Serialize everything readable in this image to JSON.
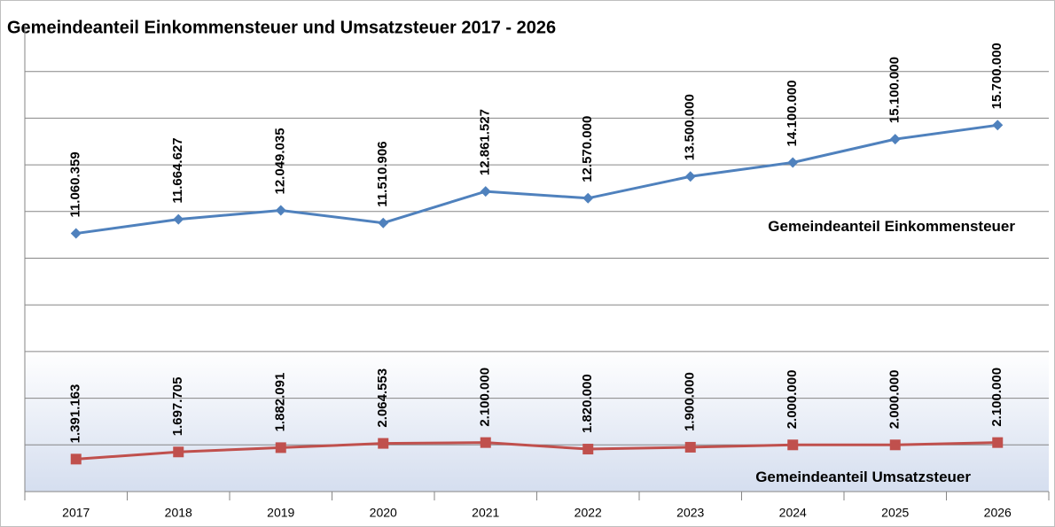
{
  "chart_data": {
    "type": "line",
    "title": "Gemeindeanteil Einkommensteuer und Umsatzsteuer 2017 - 2026",
    "categories": [
      "2017",
      "2018",
      "2019",
      "2020",
      "2021",
      "2022",
      "2023",
      "2024",
      "2025",
      "2026"
    ],
    "series": [
      {
        "name": "Gemeindeanteil Einkommensteuer",
        "color": "#4f81bd",
        "marker": "diamond",
        "values": [
          11060359,
          11664627,
          12049035,
          11510906,
          12861527,
          12570000,
          13500000,
          14100000,
          15100000,
          15700000
        ],
        "value_labels": [
          "11.060.359",
          "11.664.627",
          "12.049.035",
          "11.510.906",
          "12.861.527",
          "12.570.000",
          "13.500.000",
          "14.100.000",
          "15.100.000",
          "15.700.000"
        ]
      },
      {
        "name": "Gemeindeanteil Umsatzsteuer",
        "color": "#c0504d",
        "marker": "square",
        "values": [
          1391163,
          1697705,
          1882091,
          2064553,
          2100000,
          1820000,
          1900000,
          2000000,
          2000000,
          2100000
        ],
        "value_labels": [
          "1.391.163",
          "1.697.705",
          "1.882.091",
          "2.064.553",
          "2.100.000",
          "1.820.000",
          "1.900.000",
          "2.000.000",
          "2.000.000",
          "2.100.000"
        ]
      }
    ],
    "ylim": [
      0,
      20000000
    ],
    "yticks": [
      0,
      2000000,
      4000000,
      6000000,
      8000000,
      10000000,
      12000000,
      14000000,
      16000000,
      18000000
    ],
    "grid": true
  }
}
